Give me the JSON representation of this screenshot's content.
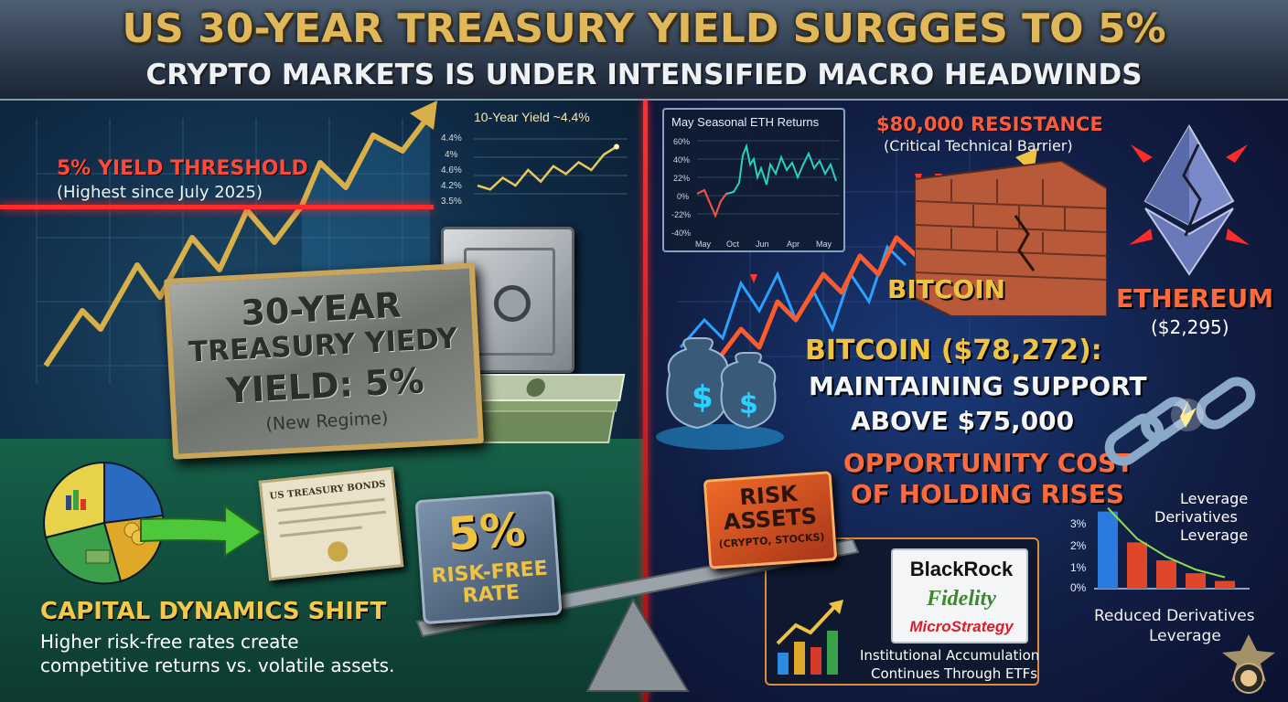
{
  "header": {
    "title": "US 30-YEAR TREASURY YIELD SURGGES TO 5%",
    "subtitle": "CRYPTO MARKETS IS UNDER INTENSIFIED MACRO HEADWINDS"
  },
  "left": {
    "threshold_label": "5% YIELD THRESHOLD",
    "threshold_note": "(Highest since July 2025)",
    "mini_chart": {
      "title": "10-Year Yield ~4.4%",
      "tick_labels": [
        "4.4%",
        "4%",
        "4.6%",
        "4.2%",
        "3.5%"
      ],
      "values": [
        4.1,
        4.05,
        4.2,
        4.1,
        4.3,
        4.15,
        4.35,
        4.25,
        4.4,
        4.3,
        4.5,
        4.6
      ]
    },
    "plaque": {
      "line1": "30-YEAR",
      "line2": "TREASURY YIEDY",
      "line3": "YIELD: 5%",
      "line4": "(New Regime)"
    },
    "bond_title": "US TREASURY BONDS",
    "capital_title": "CAPITAL DYNAMICS SHIFT",
    "capital_desc_1": "Higher risk-free rates create",
    "capital_desc_2": "competitive returns vs. volatile assets.",
    "risk_free_value": "5%",
    "risk_free_label": "RISK-FREE RATE"
  },
  "right": {
    "eth_chart": {
      "title": "May Seasonal ETH Returns",
      "y_ticks": [
        "60%",
        "40%",
        "22%",
        "0%",
        "-22%",
        "-40%"
      ],
      "x_ticks": [
        "May",
        "Oct",
        "Jun",
        "Apr",
        "May"
      ]
    },
    "resistance_title": "$80,000 RESISTANCE",
    "resistance_sub": "(Critical Technical Barrier)",
    "btc_label": "BITCOIN",
    "eth_label": "ETHEREUM",
    "eth_price": "($2,295)",
    "btc_price_line": "BITCOIN ($78,272):",
    "btc_support_1": "MAINTAINING SUPPORT",
    "btc_support_2": "ABOVE $75,000",
    "opportunity_1": "OPPORTUNITY COST",
    "opportunity_2": "OF HOLDING RISES",
    "risk_assets_title": "RISK ASSETS",
    "risk_assets_sub": "(CRYPTO, STOCKS)",
    "leverage_chart": {
      "y_ticks": [
        "3%",
        "2%",
        "1%",
        "0%"
      ],
      "values": [
        3.0,
        1.8,
        1.1,
        0.6,
        0.3
      ],
      "label_1": "Leverage",
      "label_2": "Derivatives",
      "label_3": "Leverage"
    },
    "reduced_1": "Reduced Derivatives",
    "reduced_2": "Leverage",
    "institutions": {
      "blackrock": "BlackRock",
      "fidelity": "Fidelity",
      "microstrategy": "MicroStrategy",
      "text_1": "Institutional Accumulation",
      "text_2": "Continues Through ETFs"
    }
  },
  "colors": {
    "gold": "#f0c242",
    "red": "#ff3a2a",
    "orange": "#ff6a3a",
    "navy": "#0f2a45"
  }
}
